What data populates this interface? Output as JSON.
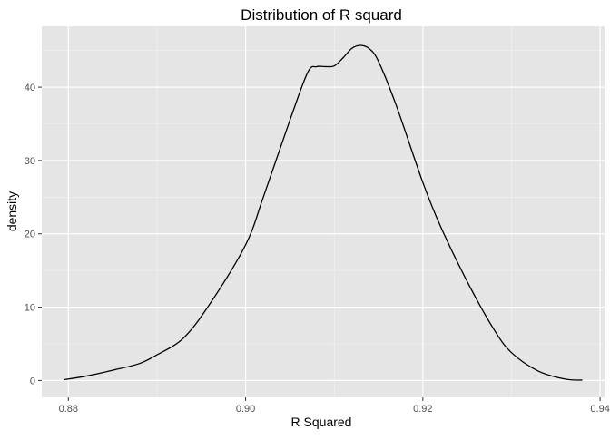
{
  "chart_data": {
    "type": "line",
    "title": "Distribution of R squard",
    "xlabel": "R Squared",
    "ylabel": "density",
    "xlim": [
      0.877,
      0.9405
    ],
    "ylim": [
      -2.3,
      48.3
    ],
    "x_ticks": [
      0.88,
      0.9,
      0.92,
      0.94
    ],
    "x_tick_labels": [
      "0.88",
      "0.90",
      "0.92",
      "0.94"
    ],
    "y_ticks": [
      0,
      10,
      20,
      30,
      40
    ],
    "y_tick_labels": [
      "0",
      "10",
      "20",
      "30",
      "40"
    ],
    "grid": true,
    "legend": "none",
    "colors": {
      "panel": "#e5e5e5",
      "grid_major": "#ffffff",
      "line": "#000000",
      "axis_text": "#4d4d4d",
      "title": "#000000"
    },
    "series": [
      {
        "x": [
          0.8795,
          0.882,
          0.885,
          0.888,
          0.89,
          0.893,
          0.896,
          0.9,
          0.902,
          0.905,
          0.907,
          0.908,
          0.909,
          0.91,
          0.911,
          0.912,
          0.913,
          0.914,
          0.915,
          0.917,
          0.92,
          0.922,
          0.925,
          0.928,
          0.93,
          0.933,
          0.936,
          0.938
        ],
        "y": [
          0.1,
          0.6,
          1.4,
          2.3,
          3.5,
          5.8,
          10.5,
          18.5,
          25.0,
          35.5,
          42.0,
          42.8,
          42.8,
          42.9,
          44.0,
          45.3,
          45.7,
          45.2,
          43.5,
          37.5,
          27.0,
          21.0,
          13.5,
          7.0,
          3.8,
          1.3,
          0.2,
          0.05
        ]
      }
    ]
  }
}
